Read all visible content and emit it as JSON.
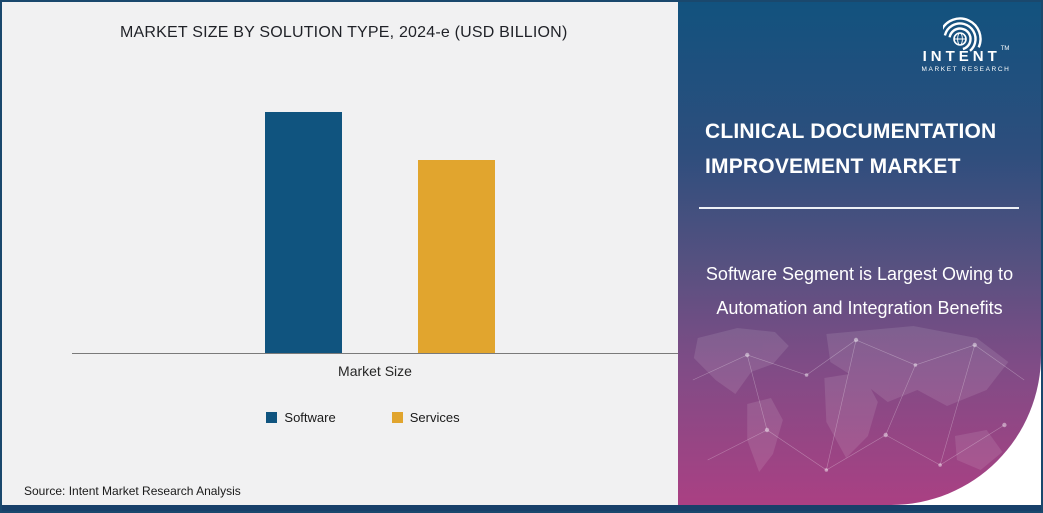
{
  "chart": {
    "source": "Source: Intent Market Research Analysis"
  },
  "chart_data": {
    "type": "bar",
    "title": "MARKET SIZE BY SOLUTION TYPE, 2024-e (USD BILLION)",
    "categories": [
      "Market Size"
    ],
    "series": [
      {
        "name": "Software",
        "value": 1.0,
        "color": "#10547f"
      },
      {
        "name": "Services",
        "value": 0.8,
        "color": "#e1a52e"
      }
    ],
    "xlabel": "Market Size",
    "ylabel": "",
    "ylim": [
      0,
      1.12
    ],
    "value_axis_visible": false,
    "data_labels_visible": false,
    "grid": false,
    "legend_position": "bottom",
    "note": "No numeric axis or data labels are shown; values are relative bar heights estimated from pixels (Services is about 0.8x Software)."
  },
  "panel": {
    "title": "CLINICAL DOCUMENTATION IMPROVEMENT MARKET",
    "subtitle": "Software Segment is Largest Owing to Automation and Integration Benefits",
    "gradient": [
      "#12527e",
      "#2e4e7d",
      "#565180",
      "#7f4c86",
      "#aa4083"
    ],
    "logo": {
      "brand": "INTENT",
      "tagline": "MARKET RESEARCH",
      "trademark": "TM"
    }
  },
  "colors": {
    "chart_background": "#f1f1f2",
    "bar_software": "#10547f",
    "bar_services": "#e1a52e",
    "axis": "#7a7a7a",
    "outer_border": "#1a486d",
    "bottom_bar": "#18406a"
  }
}
